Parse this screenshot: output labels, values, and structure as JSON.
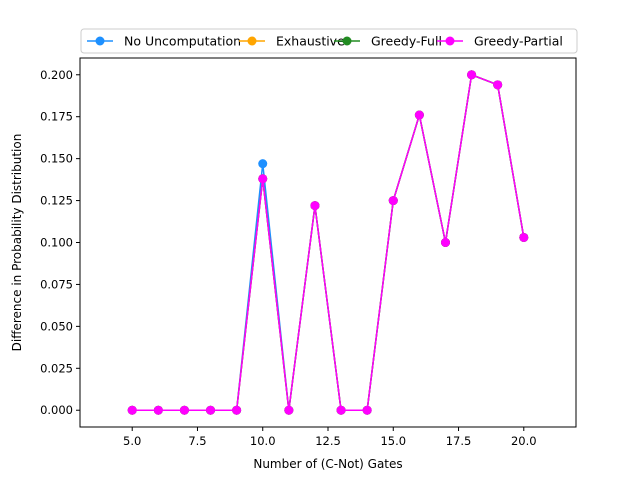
{
  "chart_data": {
    "type": "line",
    "title": "",
    "xlabel": "Number of (C-Not) Gates",
    "ylabel": "Difference in Probability Distribution",
    "xlim": [
      3.0,
      22.0
    ],
    "ylim": [
      -0.01,
      0.21
    ],
    "x_ticks": [
      5.0,
      7.5,
      10.0,
      12.5,
      15.0,
      17.5,
      20.0
    ],
    "x_tick_labels": [
      "5.0",
      "7.5",
      "10.0",
      "12.5",
      "15.0",
      "17.5",
      "20.0"
    ],
    "y_ticks": [
      0.0,
      0.025,
      0.05,
      0.075,
      0.1,
      0.125,
      0.15,
      0.175,
      0.2
    ],
    "y_tick_labels": [
      "0.000",
      "0.025",
      "0.050",
      "0.075",
      "0.100",
      "0.125",
      "0.150",
      "0.175",
      "0.200"
    ],
    "grid": false,
    "legend_position": "top-center",
    "x": [
      5,
      6,
      7,
      8,
      9,
      10,
      11,
      12,
      13,
      14,
      15,
      16,
      17,
      18,
      19,
      20
    ],
    "series": [
      {
        "name": "No Uncomputation",
        "color": "#1e90ff",
        "values": [
          0,
          0,
          0,
          0,
          0,
          0.147,
          0,
          0.122,
          0,
          0,
          0.125,
          0.176,
          0.1,
          0.2,
          0.194,
          0.103
        ]
      },
      {
        "name": "Exhaustive",
        "color": "#ffa500",
        "values": [
          0,
          0,
          0,
          0,
          0,
          0.138,
          0,
          0.122,
          0,
          0,
          0.125,
          0.176,
          0.1,
          0.2,
          0.194,
          0.103
        ]
      },
      {
        "name": "Greedy-Full",
        "color": "#228b22",
        "values": [
          0,
          0,
          0,
          0,
          0,
          0.138,
          0,
          0.122,
          0,
          0,
          0.125,
          0.176,
          0.1,
          0.2,
          0.194,
          0.103
        ]
      },
      {
        "name": "Greedy-Partial",
        "color": "#ff00ff",
        "values": [
          0,
          0,
          0,
          0,
          0,
          0.138,
          0,
          0.122,
          0,
          0,
          0.125,
          0.176,
          0.1,
          0.2,
          0.194,
          0.103
        ]
      }
    ]
  }
}
